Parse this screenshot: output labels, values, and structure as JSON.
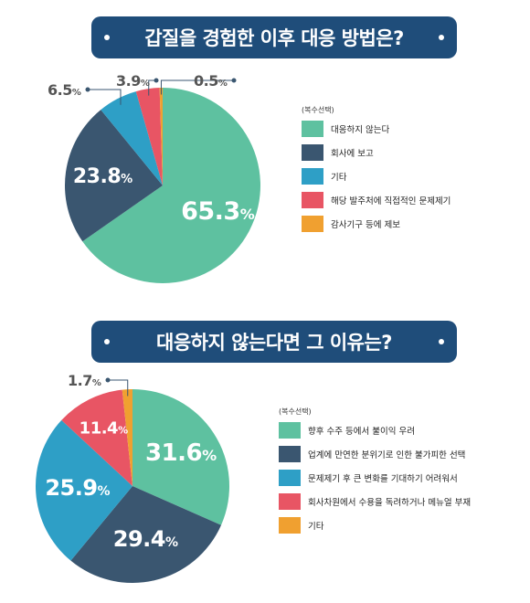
{
  "chart_data": [
    {
      "type": "pie",
      "title": "갑질을 경험한 이후 대응 방법은?",
      "note": "(복수선택)",
      "categories": [
        "대응하지 않는다",
        "회사에 보고",
        "기타",
        "해당 발주처에 직접적인 문제제기",
        "감사기구 등에 제보"
      ],
      "values": [
        65.3,
        23.8,
        6.5,
        3.9,
        0.5
      ],
      "labels": [
        "65.3%",
        "23.8%",
        "6.5%",
        "3.9%",
        "0.5%"
      ],
      "colors": [
        "#5ec1a0",
        "#3a5670",
        "#2e9fc6",
        "#e85564",
        "#f0a030"
      ],
      "legend": "right"
    },
    {
      "type": "pie",
      "title": "대응하지 않는다면 그 이유는?",
      "note": "(복수선택)",
      "categories": [
        "향후 수주 등에서 불이익 우려",
        "업계에 만연한 분위기로 인한 불가피한 선택",
        "문제제기 후 큰 변화를 기대하기 어려워서",
        "회사차원에서 수용을 독려하거나 메뉴얼 부재",
        "기타"
      ],
      "values": [
        31.6,
        29.4,
        25.9,
        11.4,
        1.7
      ],
      "labels": [
        "31.6%",
        "29.4%",
        "25.9%",
        "11.4%",
        "1.7%"
      ],
      "colors": [
        "#5ec1a0",
        "#3a5670",
        "#2e9fc6",
        "#e85564",
        "#f0a030"
      ],
      "legend": "right"
    }
  ]
}
